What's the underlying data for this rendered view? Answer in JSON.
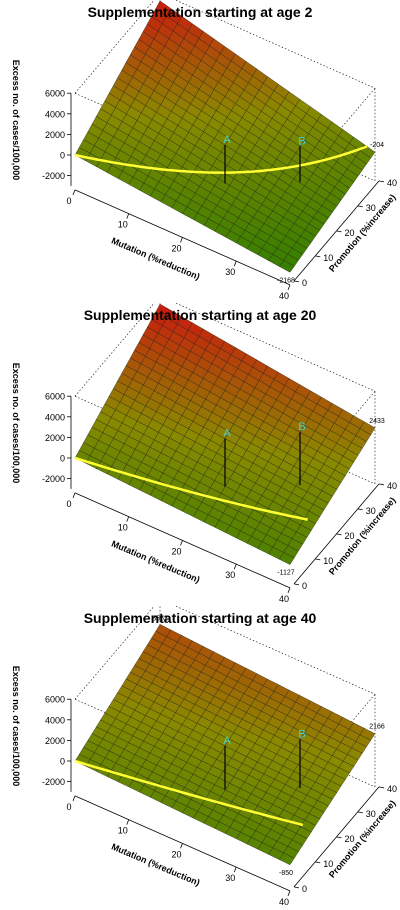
{
  "chart_data": [
    {
      "type": "surface",
      "title": "Supplementation starting at age 2",
      "xlabel": "Mutation (%reduction)",
      "ylabel": "Promotion (%increase)",
      "zlabel": "Excess no. of cases/100,000",
      "x_ticks": [
        "0",
        "10",
        "20",
        "30",
        "40"
      ],
      "y_ticks": [
        "0",
        "10",
        "20",
        "30",
        "40"
      ],
      "z_ticks": [
        "6000",
        "4000",
        "2000",
        "0",
        "-2000"
      ],
      "xlim": [
        0,
        40
      ],
      "ylim": [
        0,
        40
      ],
      "zlim": [
        -3000,
        6000
      ],
      "corner_values": {
        "x0_y40": 5253,
        "x40_y40": -204,
        "x40_y0": -2168,
        "x0_y0": 0
      },
      "corner_labels": [
        "5253",
        "-204",
        "-2168"
      ],
      "points": [
        {
          "label": "A",
          "x": 20,
          "y": 20
        },
        {
          "label": "B",
          "x": 30,
          "y": 30
        }
      ],
      "colors": {
        "low": "#2e7d00",
        "mid": "#8a8a00",
        "high": "#d01010",
        "zero_line": "#ffff33",
        "marker": "#4dd0c8"
      }
    },
    {
      "type": "surface",
      "title": "Supplementation starting at age 20",
      "xlabel": "Mutation (%reduction)",
      "ylabel": "Promotion (%increase)",
      "zlabel": "Excess no. of cases/100,000",
      "x_ticks": [
        "0",
        "10",
        "20",
        "30",
        "40"
      ],
      "y_ticks": [
        "0",
        "10",
        "20",
        "30",
        "40"
      ],
      "z_ticks": [
        "6000",
        "4000",
        "2000",
        "0",
        "-2000"
      ],
      "xlim": [
        0,
        40
      ],
      "ylim": [
        0,
        40
      ],
      "zlim": [
        -3000,
        6000
      ],
      "corner_values": {
        "x0_y40": 5234,
        "x40_y40": 2433,
        "x40_y0": -1127,
        "x0_y0": 0
      },
      "corner_labels": [
        "5234",
        "2433",
        "-1127"
      ],
      "points": [
        {
          "label": "A",
          "x": 20,
          "y": 20
        },
        {
          "label": "B",
          "x": 30,
          "y": 30
        }
      ],
      "colors": {
        "low": "#2e7d00",
        "mid": "#8a8a00",
        "high": "#d01010",
        "zero_line": "#ffff33",
        "marker": "#4dd0c8"
      }
    },
    {
      "type": "surface",
      "title": "Supplementation starting at age 40",
      "xlabel": "Mutation (%reduction)",
      "ylabel": "Promotion (%increase)",
      "zlabel": "Excess no. of cases/100,000",
      "x_ticks": [
        "0",
        "10",
        "20",
        "30",
        "40"
      ],
      "y_ticks": [
        "0",
        "10",
        "20",
        "30",
        "40"
      ],
      "z_ticks": [
        "6000",
        "4000",
        "2000",
        "0",
        "-2000"
      ],
      "xlim": [
        0,
        40
      ],
      "ylim": [
        0,
        40
      ],
      "zlim": [
        -3000,
        6000
      ],
      "corner_values": {
        "x0_y40": 3552,
        "x40_y40": 2166,
        "x40_y0": -850,
        "x0_y0": 0
      },
      "corner_labels": [
        "3552",
        "2166",
        "-850"
      ],
      "points": [
        {
          "label": "A",
          "x": 20,
          "y": 20
        },
        {
          "label": "B",
          "x": 30,
          "y": 30
        }
      ],
      "colors": {
        "low": "#2e7d00",
        "mid": "#8a8a00",
        "high": "#d01010",
        "zero_line": "#ffff33",
        "marker": "#4dd0c8"
      }
    }
  ]
}
